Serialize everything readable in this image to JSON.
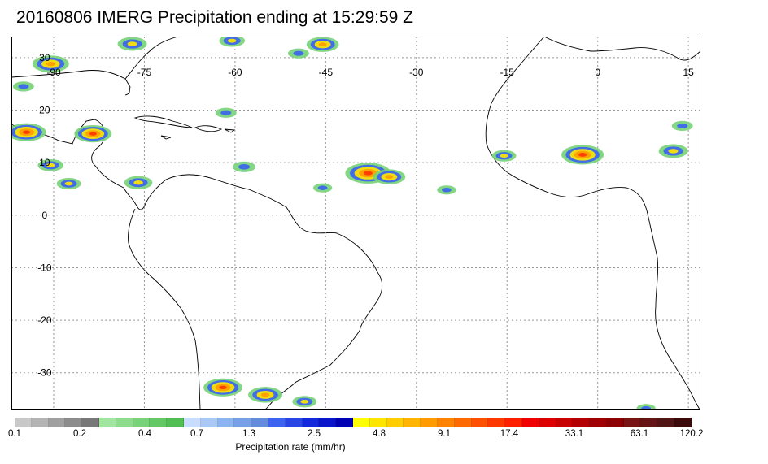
{
  "title": "20160806 IMERG Precipitation ending at 15:29:59 Z",
  "map": {
    "lon_range": [
      -97,
      17
    ],
    "lat_range": [
      -37,
      34
    ],
    "lon_labels": [
      {
        "lon": -90,
        "text": "-90"
      },
      {
        "lon": -75,
        "text": "-75"
      },
      {
        "lon": -60,
        "text": "-60"
      },
      {
        "lon": -45,
        "text": "-45"
      },
      {
        "lon": -30,
        "text": "-30"
      },
      {
        "lon": -15,
        "text": "-15"
      },
      {
        "lon": 0,
        "text": "0"
      },
      {
        "lon": 15,
        "text": "15"
      }
    ],
    "lat_labels": [
      {
        "lat": 30,
        "text": "30"
      },
      {
        "lat": 20,
        "text": "20"
      },
      {
        "lat": 10,
        "text": "10"
      },
      {
        "lat": 0,
        "text": "0"
      },
      {
        "lat": -10,
        "text": "-10"
      },
      {
        "lat": -20,
        "text": "-20"
      },
      {
        "lat": -30,
        "text": "-30"
      }
    ]
  },
  "colorbar": {
    "label": "Precipitation rate (mm/hr)",
    "colors": [
      "#c8c8c8",
      "#b4b4b4",
      "#a0a0a0",
      "#8c8c8c",
      "#787878",
      "#a0e6a0",
      "#8cdc8c",
      "#78d278",
      "#64c864",
      "#50be50",
      "#c8dcff",
      "#aac8f5",
      "#8cb4f0",
      "#78a0e6",
      "#648cdc",
      "#3c64f0",
      "#2846e6",
      "#1428dc",
      "#0a14c8",
      "#0000b4",
      "#ffff00",
      "#ffe600",
      "#ffcd00",
      "#ffb400",
      "#ff9b00",
      "#ff8200",
      "#ff6900",
      "#ff5000",
      "#ff3700",
      "#ff1e00",
      "#f00000",
      "#dc0000",
      "#c80000",
      "#b40000",
      "#a00000",
      "#8c0000",
      "#781414",
      "#641414",
      "#501414",
      "#3c0a0a"
    ],
    "ticks": [
      {
        "text": "0.1",
        "seg": 0
      },
      {
        "text": "0.2",
        "seg": 5
      },
      {
        "text": "0.4",
        "seg": 10
      },
      {
        "text": "0.7",
        "seg": 14
      },
      {
        "text": "1.3",
        "seg": 18
      },
      {
        "text": "2.5",
        "seg": 23
      },
      {
        "text": "4.8",
        "seg": 28
      },
      {
        "text": "9.1",
        "seg": 33
      },
      {
        "text": "17.4",
        "seg": 38
      },
      {
        "text": "33.1",
        "seg": 43
      },
      {
        "text": "63.1",
        "seg": 48
      },
      {
        "text": "120.2",
        "seg": 52
      }
    ]
  },
  "precip_cells": [
    {
      "lon": -90.5,
      "lat": 28.8,
      "mm_hr": 17
    },
    {
      "lon": -77,
      "lat": 32.6,
      "mm_hr": 9
    },
    {
      "lon": -60.5,
      "lat": 33.2,
      "mm_hr": 6
    },
    {
      "lon": -45.5,
      "lat": 32.5,
      "mm_hr": 12
    },
    {
      "lon": -49.5,
      "lat": 30.8,
      "mm_hr": 3
    },
    {
      "lon": -95,
      "lat": 24.5,
      "mm_hr": 3
    },
    {
      "lon": -94.5,
      "lat": 15.8,
      "mm_hr": 20
    },
    {
      "lon": -83.5,
      "lat": 15.5,
      "mm_hr": 18
    },
    {
      "lon": -90.5,
      "lat": 9.5,
      "mm_hr": 6
    },
    {
      "lon": -87.5,
      "lat": 6,
      "mm_hr": 5
    },
    {
      "lon": -76,
      "lat": 6.2,
      "mm_hr": 8
    },
    {
      "lon": -58.5,
      "lat": 9.2,
      "mm_hr": 4
    },
    {
      "lon": -61.5,
      "lat": 19.5,
      "mm_hr": 3
    },
    {
      "lon": -45.5,
      "lat": 5.2,
      "mm_hr": 2
    },
    {
      "lon": -38,
      "lat": 8,
      "mm_hr": 30
    },
    {
      "lon": -34.5,
      "lat": 7.3,
      "mm_hr": 12
    },
    {
      "lon": -25,
      "lat": 4.8,
      "mm_hr": 2
    },
    {
      "lon": -15.5,
      "lat": 11.3,
      "mm_hr": 5
    },
    {
      "lon": -2.5,
      "lat": 11.5,
      "mm_hr": 25
    },
    {
      "lon": 12.5,
      "lat": 12.2,
      "mm_hr": 9
    },
    {
      "lon": 14,
      "lat": 17,
      "mm_hr": 3
    },
    {
      "lon": -62,
      "lat": -32.8,
      "mm_hr": 20
    },
    {
      "lon": -55,
      "lat": -34.2,
      "mm_hr": 14
    },
    {
      "lon": -48.5,
      "lat": -35.5,
      "mm_hr": 5
    },
    {
      "lon": 8,
      "lat": -36.8,
      "mm_hr": 2
    }
  ]
}
